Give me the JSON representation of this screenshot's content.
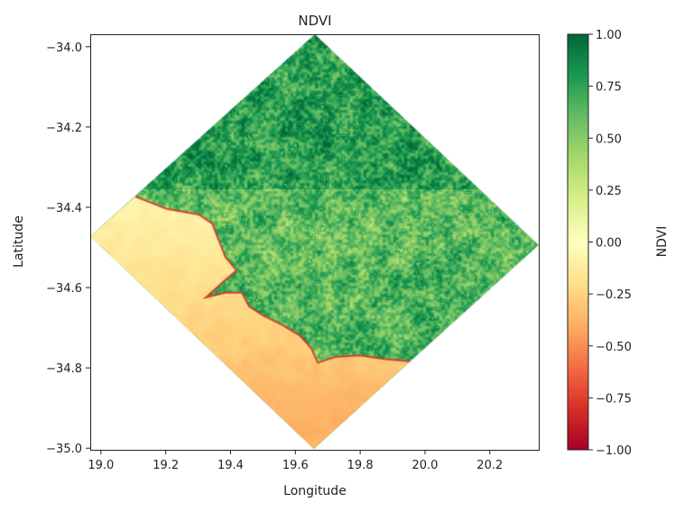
{
  "chart_data": {
    "type": "heatmap",
    "title": "NDVI",
    "xlabel": "Longitude",
    "ylabel": "Latitude",
    "xlim": [
      18.967,
      20.351
    ],
    "ylim": [
      -35.004,
      -33.969
    ],
    "xticks": [
      19.0,
      19.2,
      19.4,
      19.6,
      19.8,
      20.0,
      20.2
    ],
    "xtick_labels": [
      "19.0",
      "19.2",
      "19.4",
      "19.6",
      "19.8",
      "20.0",
      "20.2"
    ],
    "yticks": [
      -34.0,
      -34.2,
      -34.4,
      -34.6,
      -34.8,
      -35.0
    ],
    "ytick_labels": [
      "−34.0",
      "−34.2",
      "−34.4",
      "−34.6",
      "−34.8",
      "−35.0"
    ],
    "grid": false,
    "colormap": "RdYlGn",
    "colorbar": {
      "label": "NDVI",
      "range": [
        -1.0,
        1.0
      ],
      "ticks": [
        1.0,
        0.75,
        0.5,
        0.25,
        0.0,
        -0.25,
        -0.5,
        -0.75,
        -1.0
      ],
      "tick_labels": [
        "1.00",
        "0.75",
        "0.50",
        "0.25",
        "0.00",
        "−0.25",
        "−0.50",
        "−0.75",
        "−1.00"
      ],
      "placement": "right"
    },
    "colormap_stops": [
      "#a50026",
      "#d73027",
      "#f46d43",
      "#fdae61",
      "#fee08b",
      "#ffffbf",
      "#d9ef8b",
      "#a6d96a",
      "#66bd63",
      "#1a9850",
      "#006837"
    ],
    "scene_footprint": [
      [
        19.66,
        -33.969
      ],
      [
        20.351,
        -34.494
      ],
      [
        19.657,
        -35.002
      ],
      [
        18.967,
        -34.472
      ]
    ],
    "coastline": [
      [
        19.106,
        -34.373
      ],
      [
        19.203,
        -34.404
      ],
      [
        19.301,
        -34.418
      ],
      [
        19.343,
        -34.44
      ],
      [
        19.362,
        -34.479
      ],
      [
        19.384,
        -34.524
      ],
      [
        19.418,
        -34.557
      ],
      [
        19.379,
        -34.584
      ],
      [
        19.323,
        -34.625
      ],
      [
        19.384,
        -34.613
      ],
      [
        19.435,
        -34.613
      ],
      [
        19.457,
        -34.647
      ],
      [
        19.501,
        -34.67
      ],
      [
        19.557,
        -34.692
      ],
      [
        19.613,
        -34.719
      ],
      [
        19.649,
        -34.751
      ],
      [
        19.669,
        -34.787
      ],
      [
        19.724,
        -34.773
      ],
      [
        19.797,
        -34.769
      ],
      [
        19.872,
        -34.778
      ],
      [
        19.955,
        -34.784
      ]
    ],
    "regions": [
      {
        "region": "land (north)",
        "ndvi_typical": 0.75
      },
      {
        "region": "land (south)",
        "ndvi_typical": 0.6
      },
      {
        "region": "ocean near coast",
        "ndvi_typical": -0.1
      },
      {
        "region": "ocean offshore",
        "ndvi_typical": -0.35
      },
      {
        "region": "surf line",
        "ndvi_typical": -0.8
      }
    ]
  }
}
